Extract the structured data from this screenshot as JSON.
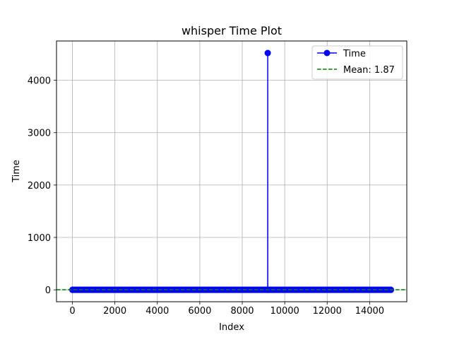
{
  "chart_data": {
    "type": "line",
    "title": "whisper Time Plot",
    "xlabel": "Index",
    "ylabel": "Time",
    "xlim": [
      -750,
      15750
    ],
    "ylim": [
      -227,
      4750
    ],
    "xticks": [
      0,
      2000,
      4000,
      6000,
      8000,
      10000,
      12000,
      14000
    ],
    "xtick_labels": [
      "0",
      "2000",
      "4000",
      "6000",
      "8000",
      "10000",
      "12000",
      "14000"
    ],
    "yticks": [
      0,
      1000,
      2000,
      3000,
      4000
    ],
    "ytick_labels": [
      "0",
      "1000",
      "2000",
      "3000",
      "4000"
    ],
    "grid": true,
    "legend_position": "top-right",
    "series": [
      {
        "name": "Time",
        "style": "line-with-markers",
        "color": "#0000ff",
        "x_range": [
          0,
          15000
        ],
        "baseline_value": 0,
        "x": [
          0,
          9199,
          9200,
          9201,
          15000
        ],
        "y": [
          0,
          0,
          4520,
          0,
          0
        ]
      },
      {
        "name": "Mean: 1.87",
        "style": "dashed-horizontal",
        "color": "#008000",
        "y": 1.87
      }
    ]
  }
}
